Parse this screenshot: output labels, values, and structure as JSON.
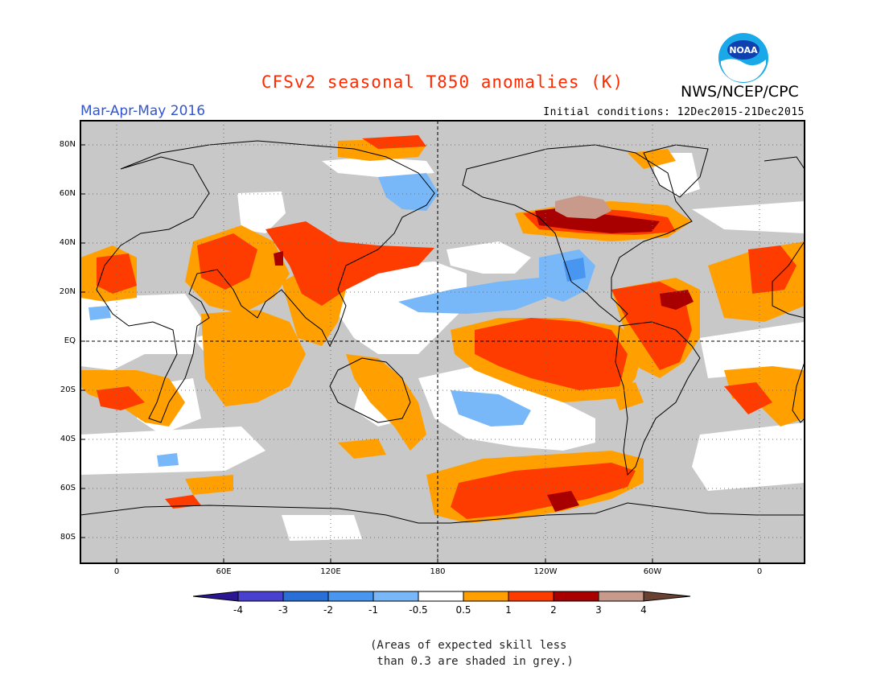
{
  "header": {
    "title": "CFSv2 seasonal T850 anomalies (K)",
    "title_color": "#ff2a00",
    "organization": "NWS/NCEP/CPC",
    "logo_text": "NOAA",
    "season": "Mar-Apr-May 2016",
    "initial_conditions": "Initial conditions: 12Dec2015-21Dec2015"
  },
  "map": {
    "lat_labels": [
      "80N",
      "60N",
      "40N",
      "20N",
      "EQ",
      "20S",
      "40S",
      "60S",
      "80S"
    ],
    "lon_labels": [
      "0",
      "60E",
      "120E",
      "180",
      "120W",
      "60W",
      "0"
    ],
    "grey_color": "#c8c8c8"
  },
  "colorbar": {
    "labels": [
      "-4",
      "-3",
      "-2",
      "-1",
      "-0.5",
      "0.5",
      "1",
      "2",
      "3",
      "4"
    ],
    "colors": [
      "#2a1690",
      "#4a40d0",
      "#2870d8",
      "#4896f0",
      "#78b8f8",
      "#ffffff",
      "#ffa000",
      "#ff3c00",
      "#a80000",
      "#c89a8c",
      "#6a4030"
    ]
  },
  "note": {
    "line1": "(Areas of expected skill less",
    "line2": " than 0.3 are shaded in grey.)"
  }
}
